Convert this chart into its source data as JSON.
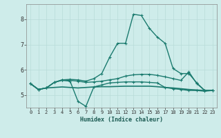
{
  "xlabel": "Humidex (Indice chaleur)",
  "background_color": "#ceecea",
  "grid_color": "#b8dbd8",
  "line_color": "#1a7a6e",
  "xlim": [
    -0.5,
    23.5
  ],
  "ylim": [
    4.5,
    8.6
  ],
  "xticks": [
    0,
    1,
    2,
    3,
    4,
    5,
    6,
    7,
    8,
    9,
    10,
    11,
    12,
    13,
    14,
    15,
    16,
    17,
    18,
    19,
    20,
    21,
    22,
    23
  ],
  "yticks": [
    5,
    6,
    7,
    8
  ],
  "lines": [
    {
      "x": [
        0,
        1,
        2,
        3,
        4,
        5,
        6,
        7,
        8,
        9,
        10,
        11,
        12,
        13,
        14,
        15,
        16,
        17,
        18,
        19,
        20,
        21,
        22,
        23
      ],
      "y": [
        5.45,
        5.22,
        5.28,
        5.3,
        5.32,
        5.3,
        5.28,
        5.3,
        5.32,
        5.33,
        5.33,
        5.34,
        5.35,
        5.35,
        5.35,
        5.35,
        5.33,
        5.3,
        5.28,
        5.25,
        5.22,
        5.2,
        5.18,
        5.18
      ],
      "marker": false,
      "linewidth": 1.2
    },
    {
      "x": [
        0,
        1,
        2,
        3,
        4,
        5,
        6,
        7,
        8,
        9,
        10,
        11,
        12,
        13,
        14,
        15,
        16,
        17,
        18,
        19,
        20,
        21,
        22,
        23
      ],
      "y": [
        5.45,
        5.22,
        5.28,
        5.5,
        5.58,
        5.55,
        4.75,
        4.55,
        5.32,
        5.4,
        5.48,
        5.5,
        5.52,
        5.52,
        5.52,
        5.5,
        5.48,
        5.3,
        5.25,
        5.22,
        5.18,
        5.18,
        5.15,
        5.18
      ],
      "marker": true,
      "linewidth": 1.0
    },
    {
      "x": [
        0,
        1,
        2,
        3,
        4,
        5,
        6,
        7,
        8,
        9,
        10,
        11,
        12,
        13,
        14,
        15,
        16,
        17,
        18,
        19,
        20,
        21,
        22,
        23
      ],
      "y": [
        5.45,
        5.22,
        5.28,
        5.5,
        5.6,
        5.62,
        5.6,
        5.55,
        5.65,
        5.85,
        6.5,
        7.05,
        7.05,
        8.2,
        8.15,
        7.65,
        7.3,
        7.05,
        6.05,
        5.85,
        5.85,
        5.48,
        5.18,
        5.18
      ],
      "marker": true,
      "linewidth": 1.0
    },
    {
      "x": [
        0,
        1,
        2,
        3,
        4,
        5,
        6,
        7,
        8,
        9,
        10,
        11,
        12,
        13,
        14,
        15,
        16,
        17,
        18,
        19,
        20,
        21,
        22,
        23
      ],
      "y": [
        5.45,
        5.22,
        5.28,
        5.5,
        5.6,
        5.58,
        5.55,
        5.5,
        5.52,
        5.55,
        5.6,
        5.65,
        5.75,
        5.8,
        5.82,
        5.82,
        5.78,
        5.72,
        5.65,
        5.58,
        5.92,
        5.45,
        5.18,
        5.18
      ],
      "marker": true,
      "linewidth": 1.0
    }
  ]
}
